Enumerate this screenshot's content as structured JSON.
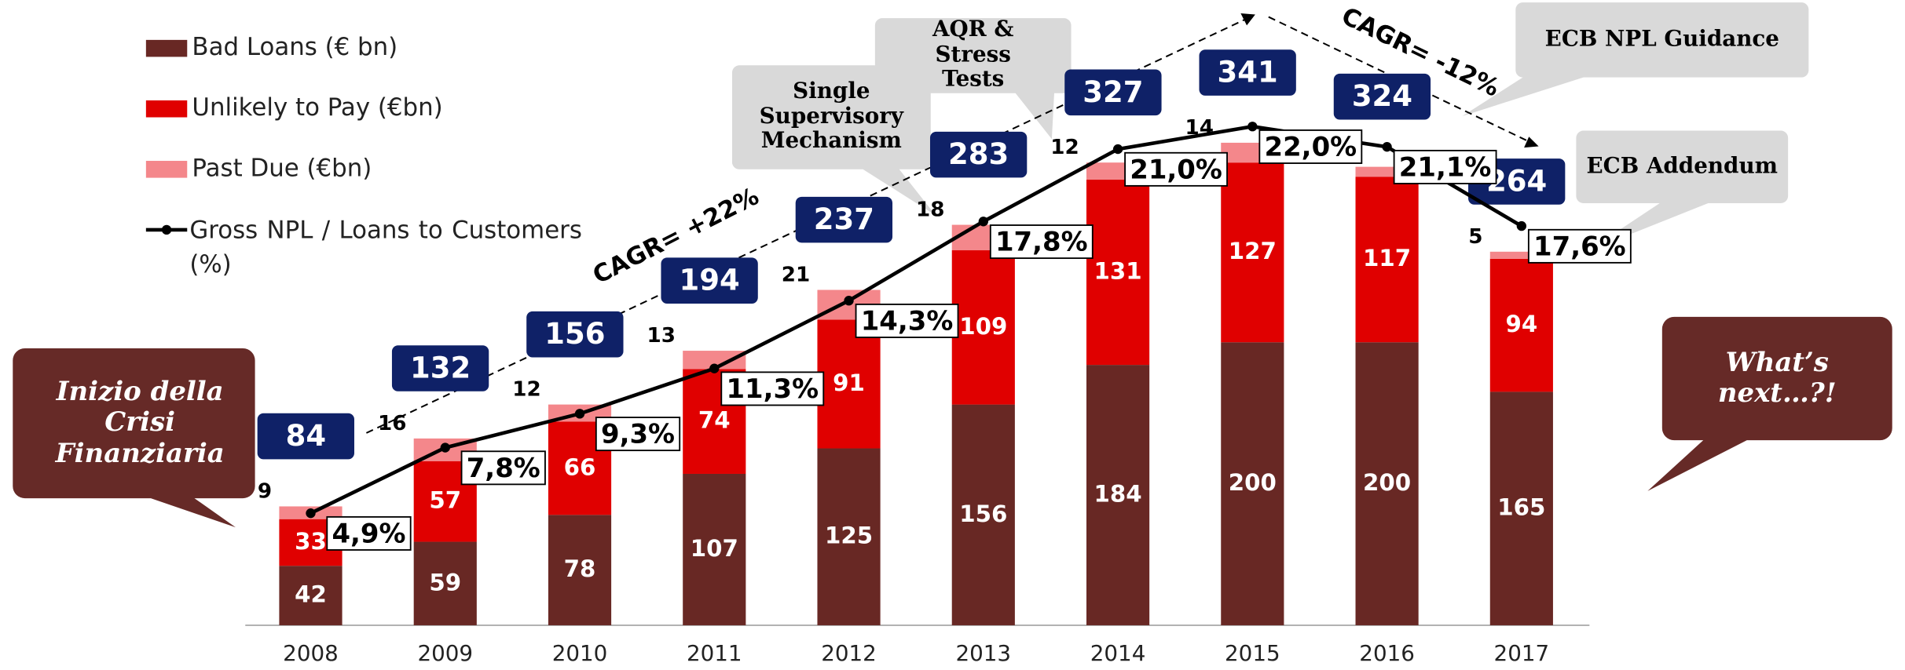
{
  "chart_data": {
    "type": "stacked-bar-line",
    "categories": [
      "2008",
      "2009",
      "2010",
      "2011",
      "2012",
      "2013",
      "2014",
      "2015",
      "2016",
      "2017"
    ],
    "series": [
      {
        "name": "Bad Loans (€ bn)",
        "color": "#682824",
        "values": [
          42,
          59,
          78,
          107,
          125,
          156,
          184,
          200,
          200,
          165
        ]
      },
      {
        "name": "Unlikely to Pay (€bn)",
        "color": "#e00000",
        "values": [
          33,
          57,
          66,
          74,
          91,
          109,
          131,
          127,
          117,
          94
        ]
      },
      {
        "name": "Past Due (€bn)",
        "color": "#f4878b",
        "values": [
          9,
          16,
          12,
          13,
          21,
          18,
          12,
          14,
          7,
          5
        ]
      },
      {
        "name": "Gross NPL / Loans to Customers (%)",
        "color": "#000000",
        "type": "line",
        "values": [
          4.9,
          7.8,
          9.3,
          11.3,
          14.3,
          17.8,
          21.0,
          22.0,
          21.1,
          17.6
        ],
        "value_labels": [
          "4,9%",
          "7,8%",
          "9,3%",
          "11,3%",
          "14,3%",
          "17,8%",
          "21,0%",
          "22,0%",
          "21,1%",
          "17,6%"
        ]
      }
    ],
    "totals": [
      84,
      132,
      156,
      194,
      237,
      283,
      327,
      341,
      324,
      264
    ],
    "totals_color": "#0f2167",
    "annotations": {
      "cagr_up": "CAGR= +22%",
      "cagr_down": "CAGR= -12%",
      "ssm": "Single Supervisory Mechanism",
      "aqr": "AQR & Stress Tests",
      "ecb_guidance": "ECB NPL Guidance",
      "ecb_addendum": "ECB Addendum",
      "crisis": "Inizio della Crisi Finanziaria",
      "next": "What’s next…?!"
    }
  }
}
